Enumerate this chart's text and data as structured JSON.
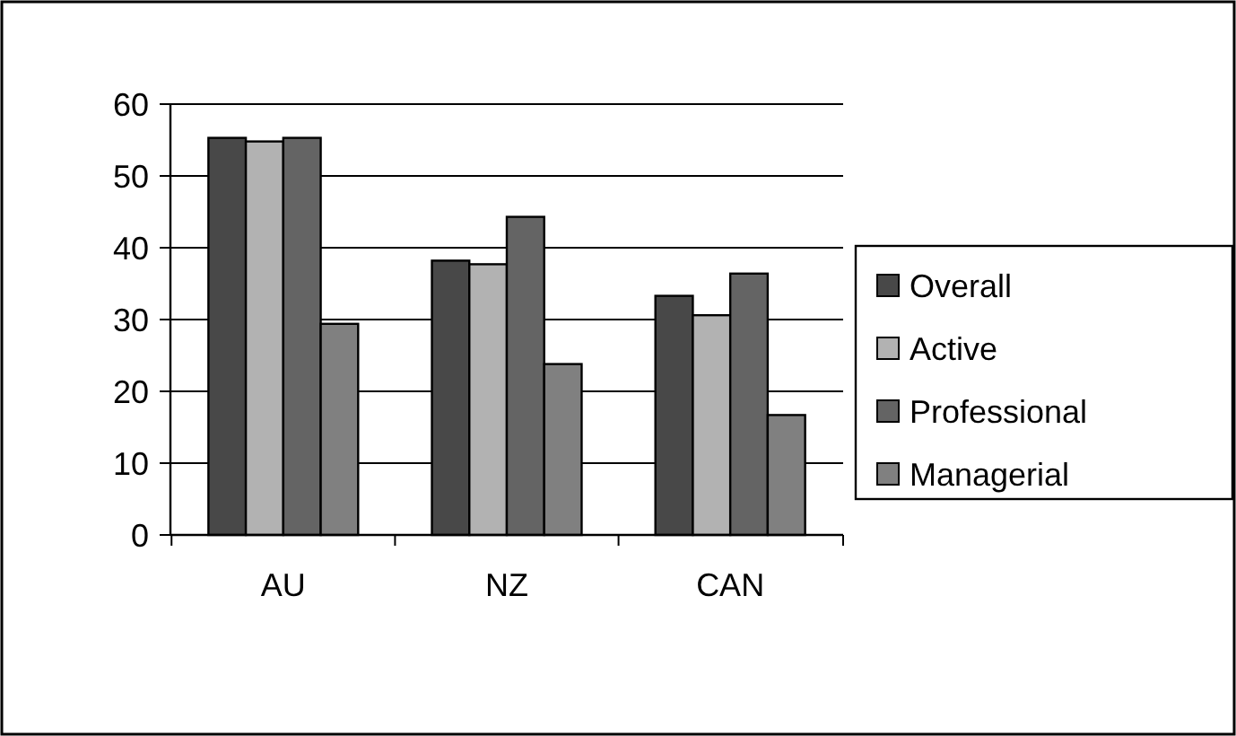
{
  "chart_data": {
    "type": "bar",
    "categories": [
      "AU",
      "NZ",
      "CAN"
    ],
    "series": [
      {
        "name": "Overall",
        "color": "#484848",
        "values": [
          55.3,
          38.2,
          33.3
        ]
      },
      {
        "name": "Active",
        "color": "#b2b2b2",
        "values": [
          54.8,
          37.7,
          30.6
        ]
      },
      {
        "name": "Professional",
        "color": "#646464",
        "values": [
          55.3,
          44.3,
          36.4
        ]
      },
      {
        "name": "Managerial",
        "color": "#808080",
        "values": [
          29.4,
          23.8,
          16.7
        ]
      }
    ],
    "ylim": [
      0,
      60
    ],
    "yticks": [
      0,
      10,
      20,
      30,
      40,
      50,
      60
    ],
    "grid": "y",
    "legend": "right"
  }
}
